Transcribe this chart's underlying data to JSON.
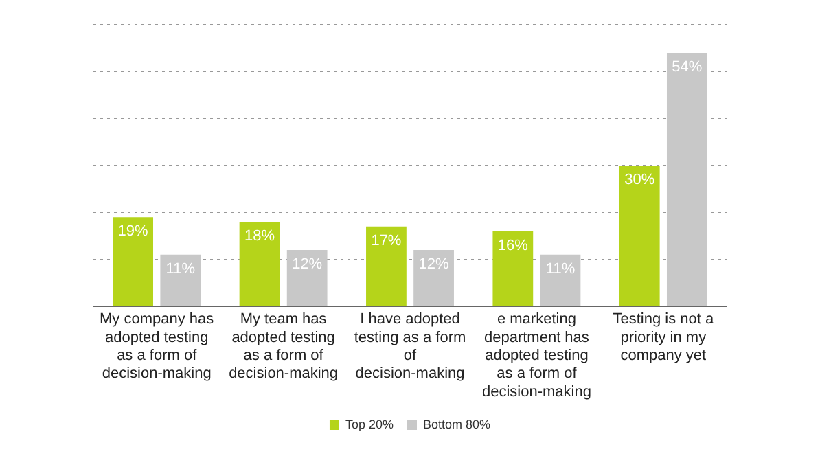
{
  "chart_data": {
    "type": "bar",
    "categories": [
      "My company has adopted testing as a form of decision-making",
      "My team has adopted testing as a form of decision-making",
      "I have adopted testing as a form of decision-making",
      "e marketing department has adopted testing as a form of decision-making",
      "Testing is not a priority in my company yet"
    ],
    "series": [
      {
        "name": "Top 20%",
        "color": "#b5d41a",
        "values": [
          19,
          18,
          17,
          16,
          30
        ],
        "value_labels": [
          "19%",
          "18%",
          "17%",
          "16%",
          "30%"
        ]
      },
      {
        "name": "Bottom 80%",
        "color": "#c8c8c8",
        "values": [
          11,
          12,
          12,
          11,
          54
        ],
        "value_labels": [
          "11%",
          "12%",
          "12%",
          "11%",
          "54%"
        ]
      }
    ],
    "ylim": [
      0,
      60
    ],
    "yticks": [
      {
        "value": 0,
        "label": null
      },
      {
        "value": 10,
        "label": null
      },
      {
        "value": 20,
        "label": null
      },
      {
        "value": 30,
        "label": null
      },
      {
        "value": 40,
        "label": null
      },
      {
        "value": 50,
        "label": null
      },
      {
        "value": 60,
        "label": null
      }
    ],
    "grid": "y",
    "legend": "bottom",
    "tick_labels": "x"
  }
}
